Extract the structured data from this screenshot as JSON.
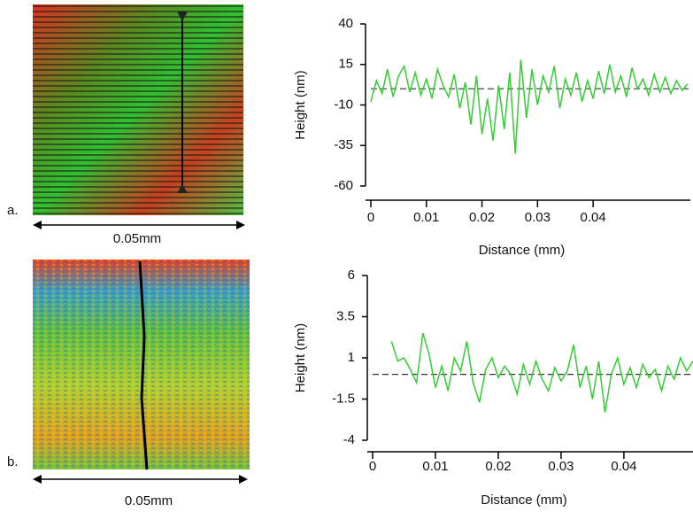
{
  "panels": [
    {
      "label": "a.",
      "scale": "0.05mm"
    },
    {
      "label": "b.",
      "scale": "0.05mm"
    }
  ],
  "chart_data": [
    {
      "type": "line",
      "xlabel": "Distance (mm)",
      "ylabel": "Height (nm)",
      "xlim": [
        0,
        0.0575
      ],
      "ylim": [
        -60,
        40
      ],
      "xticks": [
        0,
        0.01,
        0.02,
        0.03,
        0.04
      ],
      "yticks": [
        40,
        15,
        -10,
        -35,
        -60
      ],
      "hline": 0,
      "x": [
        0,
        0.001,
        0.002,
        0.003,
        0.004,
        0.005,
        0.006,
        0.007,
        0.008,
        0.009,
        0.01,
        0.011,
        0.012,
        0.013,
        0.014,
        0.015,
        0.016,
        0.017,
        0.018,
        0.019,
        0.02,
        0.021,
        0.022,
        0.023,
        0.024,
        0.025,
        0.026,
        0.027,
        0.028,
        0.029,
        0.03,
        0.031,
        0.032,
        0.033,
        0.034,
        0.035,
        0.036,
        0.037,
        0.038,
        0.039,
        0.04,
        0.041,
        0.042,
        0.043,
        0.044,
        0.045,
        0.046,
        0.047,
        0.048,
        0.049,
        0.05,
        0.051,
        0.052,
        0.053,
        0.054,
        0.055,
        0.056,
        0.057
      ],
      "series": [
        {
          "color": "#33cc33",
          "values": [
            -8,
            5,
            -3,
            12,
            -5,
            8,
            14,
            -2,
            10,
            -4,
            6,
            -6,
            12,
            2,
            -5,
            9,
            -12,
            4,
            -22,
            8,
            -28,
            -6,
            -32,
            2,
            -25,
            10,
            -40,
            18,
            -18,
            12,
            -10,
            8,
            -2,
            14,
            -12,
            6,
            -4,
            10,
            -8,
            5,
            -6,
            11,
            -3,
            15,
            -2,
            8,
            -5,
            13,
            0,
            6,
            -4,
            9,
            -2,
            7,
            -3,
            5,
            -1,
            3
          ]
        }
      ]
    },
    {
      "type": "line",
      "xlabel": "Distance (mm)",
      "ylabel": "Height (nm)",
      "xlim": [
        0,
        0.051
      ],
      "ylim": [
        -4,
        6
      ],
      "xticks": [
        0,
        0.01,
        0.02,
        0.03,
        0.04
      ],
      "yticks": [
        6,
        3.5,
        1,
        -1.5,
        -4
      ],
      "hline": 0,
      "x": [
        0.003,
        0.004,
        0.005,
        0.006,
        0.007,
        0.008,
        0.009,
        0.01,
        0.011,
        0.012,
        0.013,
        0.014,
        0.015,
        0.016,
        0.017,
        0.018,
        0.019,
        0.02,
        0.021,
        0.022,
        0.023,
        0.024,
        0.025,
        0.026,
        0.027,
        0.028,
        0.029,
        0.03,
        0.031,
        0.032,
        0.033,
        0.034,
        0.035,
        0.036,
        0.037,
        0.038,
        0.039,
        0.04,
        0.041,
        0.042,
        0.043,
        0.044,
        0.045,
        0.046,
        0.047,
        0.048,
        0.049,
        0.05,
        0.051
      ],
      "series": [
        {
          "color": "#33cc33",
          "values": [
            2,
            0.8,
            1,
            0.3,
            -0.5,
            2.5,
            1.2,
            -0.8,
            0.5,
            -1,
            1,
            0.2,
            2,
            -0.5,
            -1.7,
            0.3,
            1,
            -0.2,
            0.5,
            0,
            -1.2,
            0.6,
            -0.6,
            0.8,
            -0.3,
            -1,
            0.4,
            -0.4,
            0.2,
            1.8,
            -0.8,
            0.5,
            -1.5,
            0.8,
            -2.3,
            0,
            1,
            -0.6,
            0.4,
            -0.8,
            0.6,
            -0.2,
            0.3,
            -1,
            0.5,
            -0.3,
            1,
            0.2,
            0.8
          ]
        }
      ]
    }
  ]
}
